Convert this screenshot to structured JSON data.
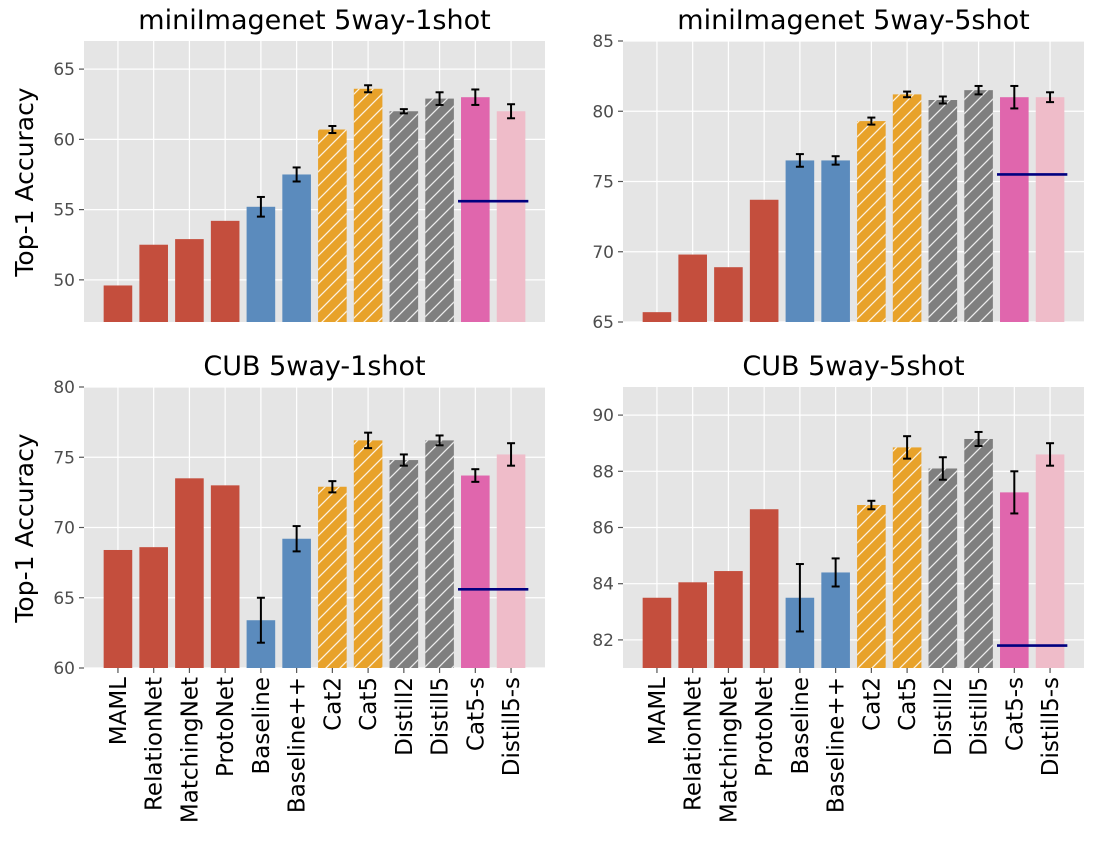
{
  "figure": {
    "ylabel": "Top-1 Accuracy",
    "categories": [
      "MAML",
      "RelationNet",
      "MatchingNet",
      "ProtoNet",
      "Baseline",
      "Baseline++",
      "Cat2",
      "Cat5",
      "Distill2",
      "Distill5",
      "Cat5-s",
      "Distill5-s"
    ],
    "bar_colors": [
      "#c44e3d",
      "#c44e3d",
      "#c44e3d",
      "#c44e3d",
      "#5b8bbd",
      "#5b8bbd",
      "#e8a22a",
      "#e8a22a",
      "#7f7f7f",
      "#7f7f7f",
      "#e066ad",
      "#efbcc9"
    ],
    "hatched": [
      false,
      false,
      false,
      false,
      false,
      false,
      true,
      true,
      true,
      true,
      false,
      false
    ],
    "reference_line_color": "#00007f",
    "panel_background": "#e5e5e5"
  },
  "chart_data": [
    {
      "type": "bar",
      "title": "miniImagenet 5way-1shot",
      "ylabel": "Top-1 Accuracy",
      "ylim": [
        47,
        67
      ],
      "yticks": [
        50,
        55,
        60,
        65
      ],
      "values": [
        49.6,
        52.5,
        52.9,
        54.2,
        55.2,
        57.5,
        60.7,
        63.6,
        62.0,
        62.9,
        63.0,
        62.0
      ],
      "errors": [
        null,
        null,
        null,
        null,
        0.7,
        0.5,
        0.25,
        0.25,
        0.15,
        0.45,
        0.55,
        0.5
      ],
      "reference_line": {
        "y": 55.6,
        "from_category": "Cat5-s",
        "to_category": "Distill5-s"
      }
    },
    {
      "type": "bar",
      "title": "miniImagenet 5way-5shot",
      "ylabel": "",
      "ylim": [
        65,
        85
      ],
      "yticks": [
        65,
        70,
        75,
        80,
        85
      ],
      "values": [
        65.7,
        69.8,
        68.9,
        73.7,
        76.5,
        76.5,
        79.3,
        81.2,
        80.8,
        81.5,
        81.0,
        81.0
      ],
      "errors": [
        null,
        null,
        null,
        null,
        0.45,
        0.3,
        0.25,
        0.2,
        0.25,
        0.3,
        0.8,
        0.35
      ],
      "reference_line": {
        "y": 75.5,
        "from_category": "Cat5-s",
        "to_category": "Distill5-s"
      }
    },
    {
      "type": "bar",
      "title": "CUB 5way-1shot",
      "ylabel": "Top-1 Accuracy",
      "ylim": [
        60,
        80
      ],
      "yticks": [
        60,
        65,
        70,
        75,
        80
      ],
      "values": [
        68.4,
        68.6,
        73.5,
        73.0,
        63.4,
        69.2,
        72.9,
        76.2,
        74.8,
        76.2,
        73.7,
        75.2
      ],
      "errors": [
        null,
        null,
        null,
        null,
        1.6,
        0.9,
        0.4,
        0.55,
        0.4,
        0.35,
        0.45,
        0.8
      ],
      "reference_line": {
        "y": 65.6,
        "from_category": "Cat5-s",
        "to_category": "Distill5-s"
      }
    },
    {
      "type": "bar",
      "title": "CUB 5way-5shot",
      "ylabel": "",
      "ylim": [
        81,
        91
      ],
      "yticks": [
        82,
        84,
        86,
        88,
        90
      ],
      "values": [
        83.5,
        84.05,
        84.45,
        86.65,
        83.5,
        84.4,
        86.8,
        88.85,
        88.1,
        89.15,
        87.25,
        88.6
      ],
      "errors": [
        null,
        null,
        null,
        null,
        1.2,
        0.5,
        0.15,
        0.4,
        0.4,
        0.25,
        0.75,
        0.4
      ],
      "reference_line": {
        "y": 81.8,
        "from_category": "Cat5-s",
        "to_category": "Distill5-s"
      }
    }
  ]
}
